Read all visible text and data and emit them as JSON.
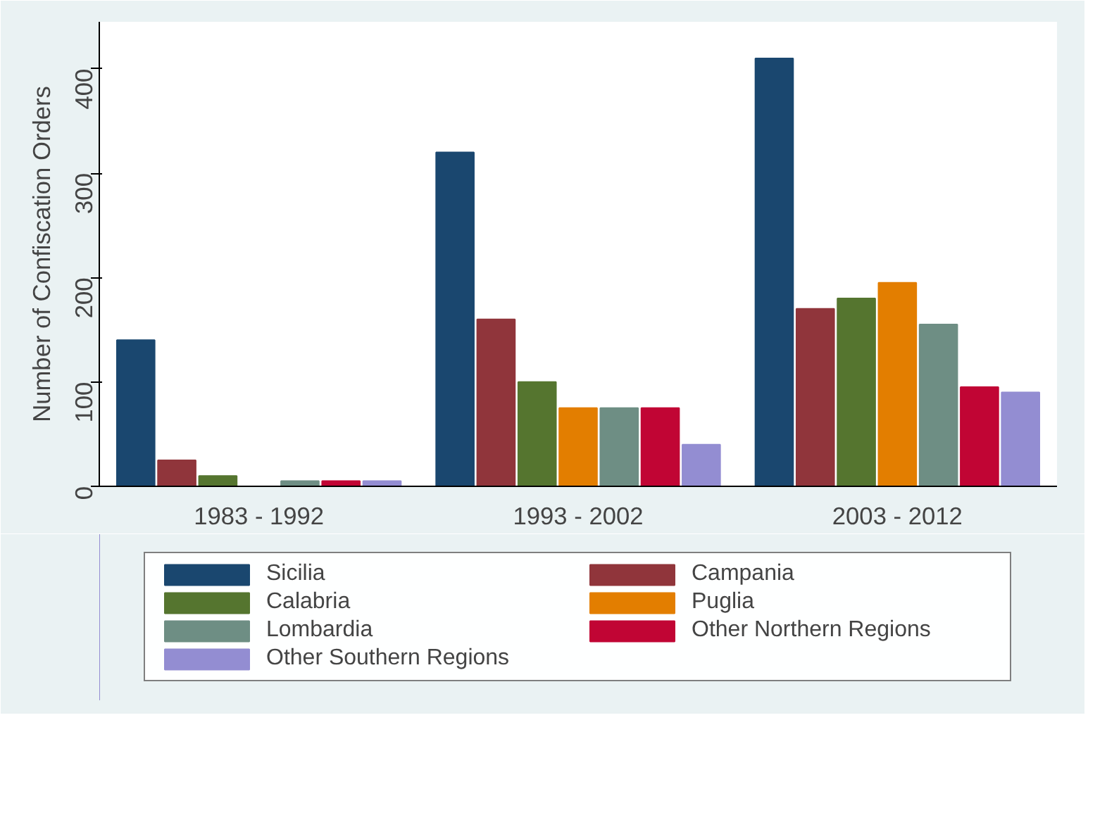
{
  "chart_data": {
    "type": "bar",
    "ylabel": "Number of Confiscation Orders",
    "categories": [
      "1983 - 1992",
      "1993 - 2002",
      "2003 - 2012"
    ],
    "series": [
      {
        "name": "Sicilia",
        "color": "#1a476f",
        "values": [
          140,
          320,
          410
        ]
      },
      {
        "name": "Campania",
        "color": "#90353b",
        "values": [
          25,
          160,
          170
        ]
      },
      {
        "name": "Calabria",
        "color": "#55752f",
        "values": [
          10,
          100,
          180
        ]
      },
      {
        "name": "Puglia",
        "color": "#e37e00",
        "values": [
          0,
          75,
          195
        ]
      },
      {
        "name": "Lombardia",
        "color": "#6e8e84",
        "values": [
          5,
          75,
          155
        ]
      },
      {
        "name": "Other Northern Regions",
        "color": "#c10534",
        "values": [
          5,
          75,
          95
        ]
      },
      {
        "name": "Other Southern Regions",
        "color": "#938dd2",
        "values": [
          5,
          40,
          90
        ]
      }
    ],
    "ylim": [
      0,
      445
    ],
    "yticks": [
      0,
      100,
      200,
      300,
      400
    ],
    "grid": false,
    "legend": "bottom"
  }
}
